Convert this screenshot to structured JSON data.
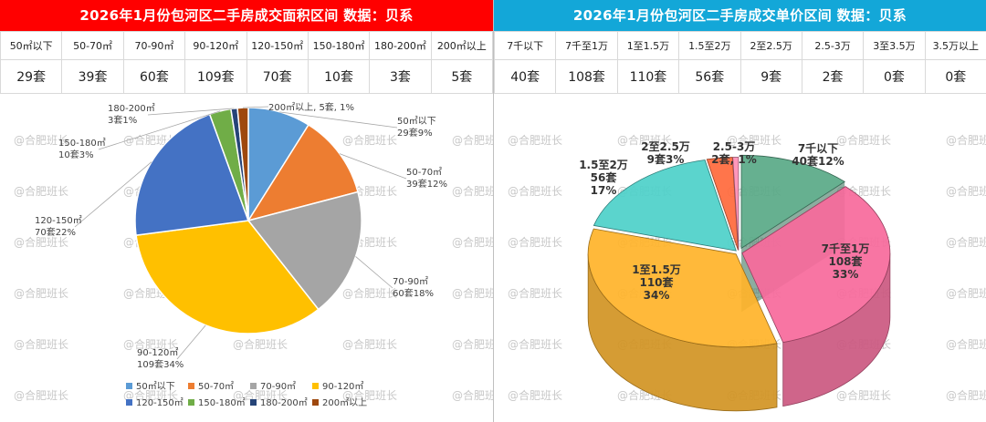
{
  "watermark": "@合肥班长",
  "left": {
    "title": "2026年1月份包河区二手房成交面积区间 数据：贝系",
    "headers": [
      "50㎡以下",
      "50-70㎡",
      "70-90㎡",
      "90-120㎡",
      "120-150㎡",
      "150-180㎡",
      "180-200㎡",
      "200㎡以上"
    ],
    "values": [
      "29套",
      "39套",
      "60套",
      "109套",
      "70套",
      "10套",
      "3套",
      "5套"
    ]
  },
  "right": {
    "title": "2026年1月份包河区二手房成交单价区间 数据：贝系",
    "headers": [
      "7千以下",
      "7千至1万",
      "1至1.5万",
      "1.5至2万",
      "2至2.5万",
      "2.5-3万",
      "3至3.5万",
      "3.5万以上"
    ],
    "values": [
      "40套",
      "108套",
      "110套",
      "56套",
      "9套",
      "2套",
      "0套",
      "0套"
    ]
  },
  "chart_data": [
    {
      "type": "pie",
      "title": "2026年1月份包河区二手房成交面积区间",
      "categories": [
        "50㎡以下",
        "50-70㎡",
        "70-90㎡",
        "90-120㎡",
        "120-150㎡",
        "150-180㎡",
        "180-200㎡",
        "200㎡以上"
      ],
      "values": [
        29,
        39,
        60,
        109,
        70,
        10,
        3,
        5
      ],
      "labels": [
        [
          "50㎡以下",
          "29套9%"
        ],
        [
          "50-70㎡",
          "39套12%"
        ],
        [
          "70-90㎡",
          "60套18%"
        ],
        [
          "90-120㎡",
          "109套34%"
        ],
        [
          "120-150㎡",
          "70套22%"
        ],
        [
          "150-180㎡",
          "10套3%"
        ],
        [
          "180-200㎡",
          "3套1%"
        ],
        [
          "200㎡以上, 5套, 1%"
        ]
      ],
      "colors": [
        "#5b9bd5",
        "#ed7d31",
        "#a5a5a5",
        "#ffc000",
        "#4472c4",
        "#70ad47",
        "#264478",
        "#9e480e"
      ],
      "legend": [
        "50㎡以下",
        "50-70㎡",
        "70-90㎡",
        "90-120㎡",
        "120-150㎡",
        "150-180㎡",
        "180-200㎡",
        "200㎡以上"
      ],
      "legend_position": "bottom"
    },
    {
      "type": "pie",
      "title": "2026年1月份包河区二手房成交单价区间",
      "categories": [
        "7千以下",
        "7千至1万",
        "1至1.5万",
        "1.5至2万",
        "2至2.5万",
        "2.5-3万"
      ],
      "values": [
        40,
        108,
        110,
        56,
        9,
        2
      ],
      "labels": [
        [
          "7千以下",
          "40套12%"
        ],
        [
          "7千至1万",
          "108套",
          "33%"
        ],
        [
          "1至1.5万",
          "110套",
          "34%"
        ],
        [
          "1.5至2万",
          "56套",
          "17%"
        ],
        [
          "2至2.5万",
          "9套3%"
        ],
        [
          "2.5-3万",
          "2套, 1%"
        ]
      ],
      "colors": [
        "#5aaa88",
        "#f76b9c",
        "#ffb42b",
        "#4fd1c9",
        "#ff6a3d",
        "#ff8fb6"
      ],
      "style": "3d-exploded"
    }
  ]
}
